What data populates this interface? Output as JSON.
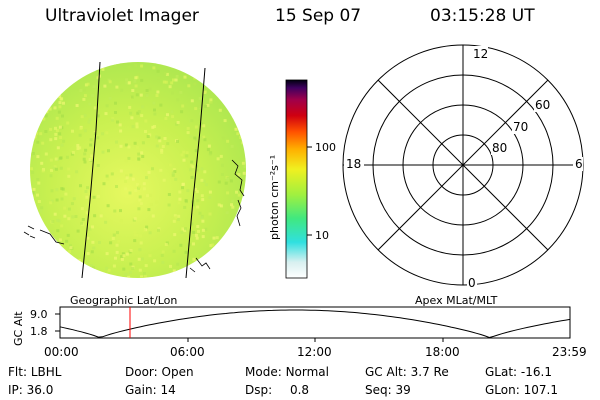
{
  "header": {
    "instrument": "Ultraviolet Imager",
    "date": "15 Sep 07",
    "time": "03:15:28 UT"
  },
  "colorbar": {
    "unit_label": "photon cm⁻²s⁻¹",
    "ticks": [
      "100",
      "10"
    ]
  },
  "earth_panel": {
    "caption": "Geographic Lat/Lon"
  },
  "polar_panel": {
    "caption": "Apex MLat/MLT",
    "mlt_labels": [
      "12",
      "18",
      "6",
      "0"
    ],
    "mlat_labels": [
      "60",
      "70",
      "80"
    ]
  },
  "altitude_plot": {
    "ylabel": "GC Alt",
    "yticks": [
      "9.0",
      "1.8"
    ],
    "xticks": [
      "00:00",
      "06:00",
      "12:00",
      "18:00",
      "23:59"
    ],
    "current_time_marker": "03:15"
  },
  "status": {
    "row1": [
      {
        "label": "Flt:",
        "value": "LBHL"
      },
      {
        "label": "Door:",
        "value": "Open"
      },
      {
        "label": "Mode:",
        "value": "Normal"
      },
      {
        "label": "GC Alt:",
        "value": "3.7 Re"
      },
      {
        "label": "GLat:",
        "value": "-16.1"
      }
    ],
    "row2": [
      {
        "label": "IP:",
        "value": "36.0"
      },
      {
        "label": "Gain:",
        "value": "14"
      },
      {
        "label": "Dsp:",
        "value": "0.8"
      },
      {
        "label": "Seq:",
        "value": "39"
      },
      {
        "label": "GLon:",
        "value": "107.1"
      }
    ]
  },
  "colors": {
    "disk_base": "#c8f050",
    "marker": "#ff0000"
  }
}
